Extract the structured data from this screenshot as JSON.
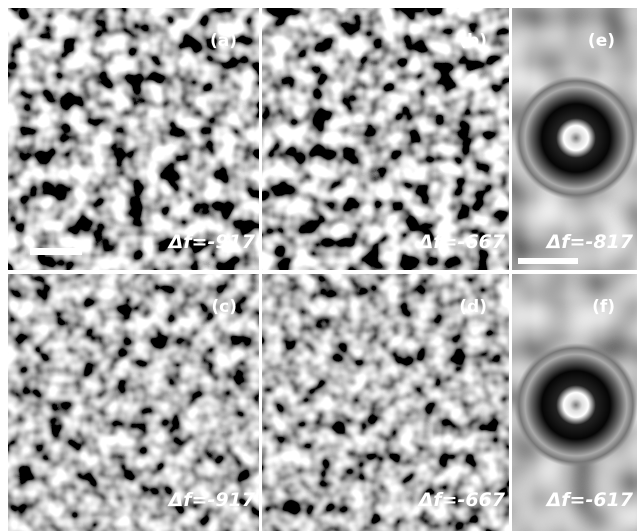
{
  "panels": [
    {
      "label": "(a)",
      "defocus": "Δf=-917"
    },
    {
      "label": "(b)",
      "defocus": "Δf=-667"
    },
    {
      "label": "(e)",
      "defocus": "Δf=-817"
    },
    {
      "label": "(c)",
      "defocus": "Δf=-917"
    },
    {
      "label": "(d)",
      "defocus": "Δf=-667"
    },
    {
      "label": "(f)",
      "defocus": "Δf=-617"
    }
  ]
}
